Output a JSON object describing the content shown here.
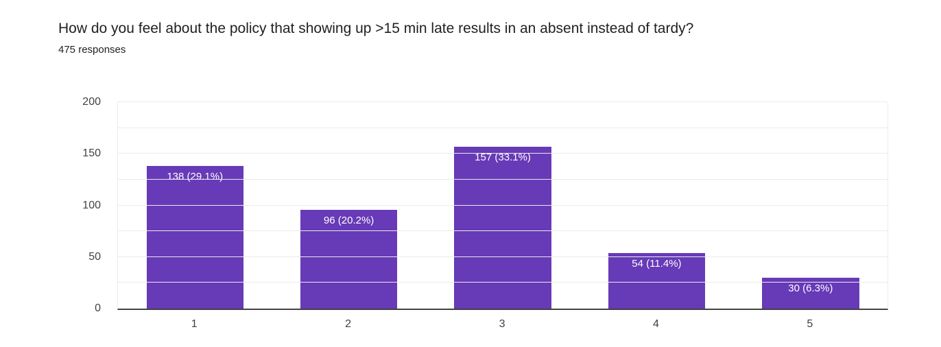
{
  "header": {
    "title": "How do you feel about the policy that showing up >15 min late results in an absent instead of tardy?",
    "subtitle": "475 responses"
  },
  "chart_data": {
    "type": "bar",
    "title": "How do you feel about the policy that showing up >15 min late results in an absent instead of tardy?",
    "subtitle": "475 responses",
    "categories": [
      "1",
      "2",
      "3",
      "4",
      "5"
    ],
    "values": [
      138,
      96,
      157,
      54,
      30
    ],
    "percentages": [
      "29.1%",
      "20.2%",
      "33.1%",
      "11.4%",
      "6.3%"
    ],
    "bar_labels": [
      "138 (29.1%)",
      "96 (20.2%)",
      "157 (33.1%)",
      "54 (11.4%)",
      "30 (6.3%)"
    ],
    "xlabel": "",
    "ylabel": "",
    "ylim": [
      0,
      200
    ],
    "yticks": [
      0,
      50,
      100,
      150,
      200
    ],
    "gridline_step": 25,
    "grid": true,
    "legend_position": "none",
    "colors": {
      "bar": "#673ab7",
      "bar_label_text": "#ffffff",
      "gridline": "#ebebeb",
      "baseline": "#424242",
      "axis_text": "#424242",
      "title_text": "#212124"
    }
  }
}
